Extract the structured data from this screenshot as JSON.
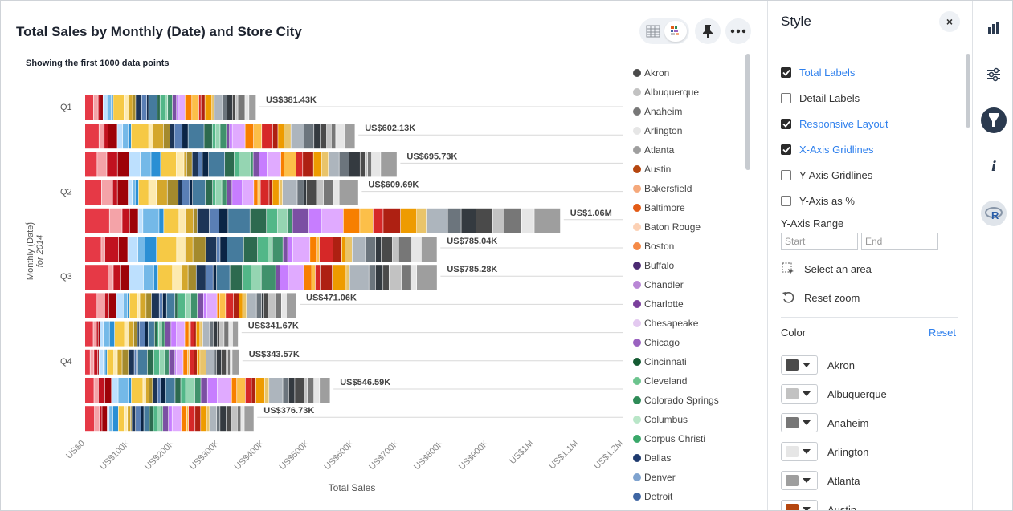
{
  "chart": {
    "title": "Total Sales by Monthly (Date) and Store City",
    "subtitle": "Showing the first 1000 data points"
  },
  "toolbar": {
    "table_icon": "table-icon",
    "chart_icon": "chart-icon",
    "pin_icon": "pin-icon",
    "more_icon": "more-icon"
  },
  "chart_data": {
    "type": "bar",
    "orientation": "horizontal",
    "stacked": true,
    "title": "Total Sales by Monthly (Date) and Store City",
    "xlabel": "Total Sales",
    "ylabel": "Monthly (Date)",
    "ylabel_sub": "for 2014",
    "xlim": [
      0,
      1200000
    ],
    "x_ticks": [
      "US$0",
      "US$100K",
      "US$200K",
      "US$300K",
      "US$400K",
      "US$500K",
      "US$600K",
      "US$700K",
      "US$800K",
      "US$900K",
      "US$1M",
      "US$1.1M",
      "US$1.2M"
    ],
    "x_tick_values": [
      0,
      100000,
      200000,
      300000,
      400000,
      500000,
      600000,
      700000,
      800000,
      900000,
      1000000,
      1100000,
      1200000
    ],
    "y_groups": [
      "Q1",
      "Q2",
      "Q3",
      "Q4"
    ],
    "totals": [
      381430,
      602130,
      695730,
      609690,
      1060000,
      785040,
      785280,
      471060,
      341670,
      343570,
      546590,
      376730
    ],
    "total_labels": [
      "US$381.43K",
      "US$602.13K",
      "US$695.73K",
      "US$609.69K",
      "US$1.06M",
      "US$785.04K",
      "US$785.28K",
      "US$471.06K",
      "US$341.67K",
      "US$343.57K",
      "US$546.59K",
      "US$376.73K"
    ],
    "grid": false,
    "legend_placement": "right"
  },
  "legend": [
    {
      "name": "Akron",
      "color": "#4a4a4a"
    },
    {
      "name": "Albuquerque",
      "color": "#c2c2c2"
    },
    {
      "name": "Anaheim",
      "color": "#777777"
    },
    {
      "name": "Arlington",
      "color": "#e6e6e6"
    },
    {
      "name": "Atlanta",
      "color": "#9e9e9e"
    },
    {
      "name": "Austin",
      "color": "#b5460f"
    },
    {
      "name": "Bakersfield",
      "color": "#f5a97c"
    },
    {
      "name": "Baltimore",
      "color": "#e35b16"
    },
    {
      "name": "Baton Rouge",
      "color": "#fcd1b5"
    },
    {
      "name": "Boston",
      "color": "#f58a47"
    },
    {
      "name": "Buffalo",
      "color": "#4b2a72"
    },
    {
      "name": "Chandler",
      "color": "#b987d6"
    },
    {
      "name": "Charlotte",
      "color": "#7a3f9c"
    },
    {
      "name": "Chesapeake",
      "color": "#e3c9f0"
    },
    {
      "name": "Chicago",
      "color": "#9a62c0"
    },
    {
      "name": "Cincinnati",
      "color": "#145a32"
    },
    {
      "name": "Cleveland",
      "color": "#6cc48e"
    },
    {
      "name": "Colorado Springs",
      "color": "#2e8b57"
    },
    {
      "name": "Columbus",
      "color": "#b9e6c8"
    },
    {
      "name": "Corpus Christi",
      "color": "#3aa86a"
    },
    {
      "name": "Dallas",
      "color": "#1e3a6e"
    },
    {
      "name": "Denver",
      "color": "#7fa3cf"
    },
    {
      "name": "Detroit",
      "color": "#3f66a3"
    }
  ],
  "y_axis": {
    "arrow": "↓",
    "label": "Monthly (Date)",
    "sub": "for 2014"
  },
  "style_panel": {
    "title": "Style",
    "close_label": "×",
    "options": [
      {
        "label": "Total Labels",
        "checked": true
      },
      {
        "label": "Detail Labels",
        "checked": false
      },
      {
        "label": "Responsive Layout",
        "checked": true
      },
      {
        "label": "X-Axis Gridlines",
        "checked": true
      },
      {
        "label": "Y-Axis Gridlines",
        "checked": false
      },
      {
        "label": "Y-Axis as %",
        "checked": false
      }
    ],
    "range_label": "Y-Axis Range",
    "range_start_placeholder": "Start",
    "range_end_placeholder": "End",
    "select_area": "Select an area",
    "reset_zoom": "Reset zoom",
    "color_title": "Color",
    "color_reset": "Reset",
    "colors": [
      {
        "name": "Akron",
        "color": "#4a4a4a"
      },
      {
        "name": "Albuquerque",
        "color": "#c2c2c2"
      },
      {
        "name": "Anaheim",
        "color": "#777777"
      },
      {
        "name": "Arlington",
        "color": "#e6e6e6"
      },
      {
        "name": "Atlanta",
        "color": "#9e9e9e"
      },
      {
        "name": "Austin",
        "color": "#b5460f"
      }
    ]
  },
  "rail": {
    "items": [
      "bar-chart-icon",
      "settings-sliders-icon",
      "paint-brush-icon",
      "info-icon",
      "r-icon"
    ]
  }
}
